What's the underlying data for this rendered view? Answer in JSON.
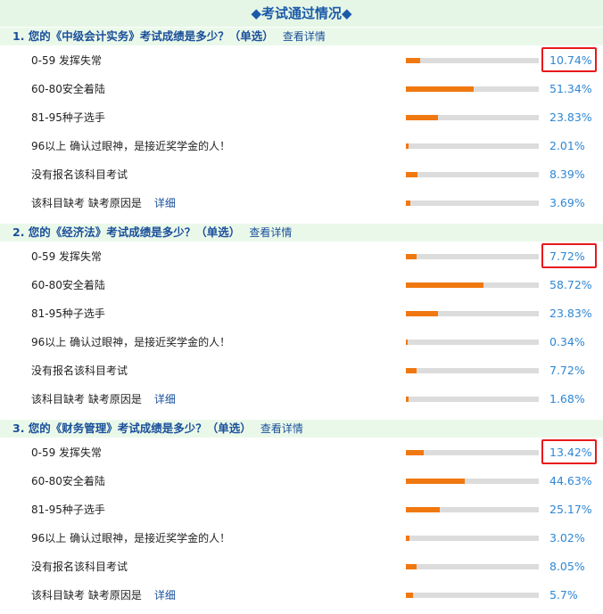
{
  "header": {
    "title": "◆考试通过情况◆"
  },
  "colors": {
    "bar_fill": "#f07810",
    "bar_track": "#dcdcdc",
    "highlight_box": "#e8191c",
    "percent_text": "#2e87d4",
    "section_bg": "#eaf8ea"
  },
  "questions": [
    {
      "title": "1. 您的《中级会计实务》考试成绩是多少？（单选）",
      "detail_label": "查看详情",
      "options": [
        {
          "label": "0-59 发挥失常",
          "percent": 10.74,
          "percent_text": "10.74%",
          "highlighted": true
        },
        {
          "label": "60-80安全着陆",
          "percent": 51.34,
          "percent_text": "51.34%"
        },
        {
          "label": "81-95种子选手",
          "percent": 23.83,
          "percent_text": "23.83%"
        },
        {
          "label": "96以上 确认过眼神，是接近奖学金的人！",
          "percent": 2.01,
          "percent_text": "2.01%"
        },
        {
          "label": "没有报名该科目考试",
          "percent": 8.39,
          "percent_text": "8.39%"
        },
        {
          "label": "该科目缺考 缺考原因是",
          "detail": "详细",
          "percent": 3.69,
          "percent_text": "3.69%"
        }
      ]
    },
    {
      "title": "2. 您的《经济法》考试成绩是多少？（单选）",
      "detail_label": "查看详情",
      "options": [
        {
          "label": "0-59 发挥失常",
          "percent": 7.72,
          "percent_text": "7.72%",
          "highlighted": true
        },
        {
          "label": "60-80安全着陆",
          "percent": 58.72,
          "percent_text": "58.72%"
        },
        {
          "label": "81-95种子选手",
          "percent": 23.83,
          "percent_text": "23.83%"
        },
        {
          "label": "96以上 确认过眼神，是接近奖学金的人！",
          "percent": 0.34,
          "percent_text": "0.34%"
        },
        {
          "label": "没有报名该科目考试",
          "percent": 7.72,
          "percent_text": "7.72%"
        },
        {
          "label": "该科目缺考 缺考原因是",
          "detail": "详细",
          "percent": 1.68,
          "percent_text": "1.68%"
        }
      ]
    },
    {
      "title": "3. 您的《财务管理》考试成绩是多少？（单选）",
      "detail_label": "查看详情",
      "options": [
        {
          "label": "0-59 发挥失常",
          "percent": 13.42,
          "percent_text": "13.42%",
          "highlighted": true
        },
        {
          "label": "60-80安全着陆",
          "percent": 44.63,
          "percent_text": "44.63%"
        },
        {
          "label": "81-95种子选手",
          "percent": 25.17,
          "percent_text": "25.17%"
        },
        {
          "label": "96以上 确认过眼神，是接近奖学金的人！",
          "percent": 3.02,
          "percent_text": "3.02%"
        },
        {
          "label": "没有报名该科目考试",
          "percent": 8.05,
          "percent_text": "8.05%"
        },
        {
          "label": "该科目缺考 缺考原因是",
          "detail": "详细",
          "percent": 5.7,
          "percent_text": "5.7%"
        }
      ]
    }
  ]
}
